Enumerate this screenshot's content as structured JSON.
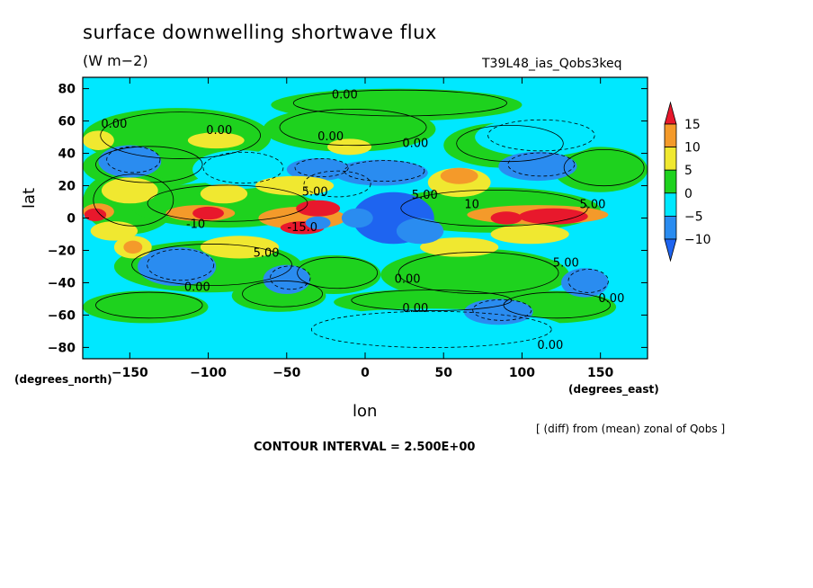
{
  "chart_data": {
    "type": "heatmap",
    "title": "surface downwelling shortwave flux",
    "units": "(W m−2)",
    "run_name": "T39L48_ias_Qobs3keq",
    "xlabel": "lon",
    "ylabel": "lat",
    "x_units": "(degrees_east)",
    "y_units": "(degrees_north)",
    "note": "[ (diff) from (mean) zonal of Qobs ]",
    "contour_interval": "CONTOUR INTERVAL = 2.500E+00",
    "xlim": [
      -180,
      180
    ],
    "ylim": [
      -87,
      87
    ],
    "x_ticks": [
      -150,
      -100,
      -50,
      0,
      50,
      100,
      150
    ],
    "x_tick_labels": [
      "−150",
      "−100",
      "−50",
      "0",
      "50",
      "100",
      "150"
    ],
    "y_ticks": [
      80,
      60,
      40,
      20,
      0,
      -20,
      -40,
      -60,
      -80
    ],
    "y_tick_labels": [
      "80",
      "60",
      "40",
      "20",
      "0",
      "−20",
      "−40",
      "−60",
      "−80"
    ],
    "colorbar": {
      "labels": [
        "15",
        "10",
        "5",
        "0",
        "−5",
        "−10"
      ],
      "colors": {
        "above_15": "#e8182c",
        "10_15": "#f49a2a",
        "5_10": "#f0e830",
        "0_5": "#1ed21e",
        "m5_0": "#00e8ff",
        "m10_m5": "#2a8cf0",
        "below_m10": "#1e64f0"
      }
    },
    "contour_labels": [
      {
        "text": "0.00",
        "lon": -13,
        "lat": 74
      },
      {
        "text": "0.00",
        "lon": -160,
        "lat": 56
      },
      {
        "text": "0.00",
        "lon": -93,
        "lat": 52
      },
      {
        "text": "0.00",
        "lon": -22,
        "lat": 48
      },
      {
        "text": "0.00",
        "lon": 32,
        "lat": 44
      },
      {
        "text": "5.00",
        "lon": -32,
        "lat": 14
      },
      {
        "text": "10",
        "lon": 68,
        "lat": 6
      },
      {
        "text": "5.00",
        "lon": 38,
        "lat": 12
      },
      {
        "text": "5.00",
        "lon": 145,
        "lat": 6
      },
      {
        "text": "-10",
        "lon": -108,
        "lat": -6
      },
      {
        "text": "-15.0",
        "lon": -40,
        "lat": -8
      },
      {
        "text": "5.00",
        "lon": -63,
        "lat": -24
      },
      {
        "text": "5.00",
        "lon": 128,
        "lat": -30
      },
      {
        "text": "0.00",
        "lon": -107,
        "lat": -45
      },
      {
        "text": "0.00",
        "lon": 27,
        "lat": -40
      },
      {
        "text": "0.00",
        "lon": 32,
        "lat": -58
      },
      {
        "text": "0.00",
        "lon": 157,
        "lat": -52
      },
      {
        "text": "0.00",
        "lon": 118,
        "lat": -81
      }
    ]
  }
}
